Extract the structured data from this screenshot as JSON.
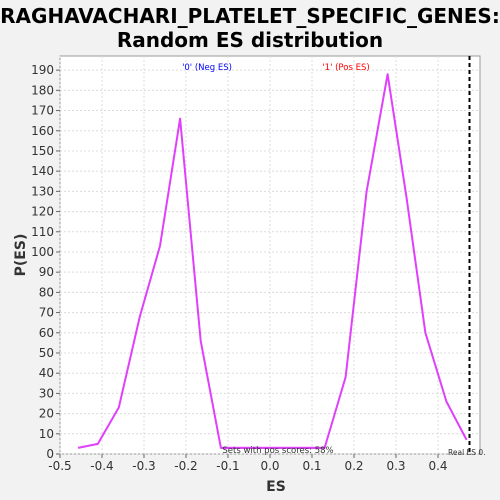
{
  "chart_data": {
    "type": "line",
    "title_line1": "RAGHAVACHARI_PLATELET_SPECIFIC_GENES:",
    "title_line2": "Random ES distribution",
    "xlabel": "ES",
    "ylabel": "P(ES)",
    "xlim": [
      -0.5,
      0.5
    ],
    "ylim": [
      0,
      197
    ],
    "xticks": [
      "-0.5",
      "-0.4",
      "-0.3",
      "-0.2",
      "-0.1",
      "0.0",
      "0.1",
      "0.2",
      "0.3",
      "0.4"
    ],
    "yticks": [
      "0",
      "10",
      "20",
      "30",
      "40",
      "50",
      "60",
      "70",
      "80",
      "90",
      "100",
      "110",
      "120",
      "130",
      "140",
      "150",
      "160",
      "170",
      "180",
      "190"
    ],
    "grid": true,
    "series": [
      {
        "color": "#e040fb",
        "x": [
          -0.457,
          -0.41,
          -0.36,
          -0.31,
          -0.262,
          -0.214,
          -0.165,
          -0.117,
          0.13,
          0.18,
          0.23,
          0.28,
          0.325,
          0.37,
          0.42,
          0.468
        ],
        "y": [
          3,
          5,
          23,
          68,
          103,
          166,
          56,
          3,
          3,
          38,
          130,
          188,
          127,
          60,
          26,
          7
        ]
      },
      {
        "color": "#e040fb",
        "x": [
          -0.117,
          0.13
        ],
        "y": [
          3,
          3
        ]
      }
    ],
    "real_es_x": 0.475,
    "annotations": {
      "neg_label": "'0' (Neg ES)",
      "neg_color": "#0000ff",
      "pos_label": "'1' (Pos ES)",
      "pos_color": "#ff0000",
      "pos_scores_text": "Sets with pos scores: 58%",
      "real_es_text": "Real ES 0."
    }
  }
}
